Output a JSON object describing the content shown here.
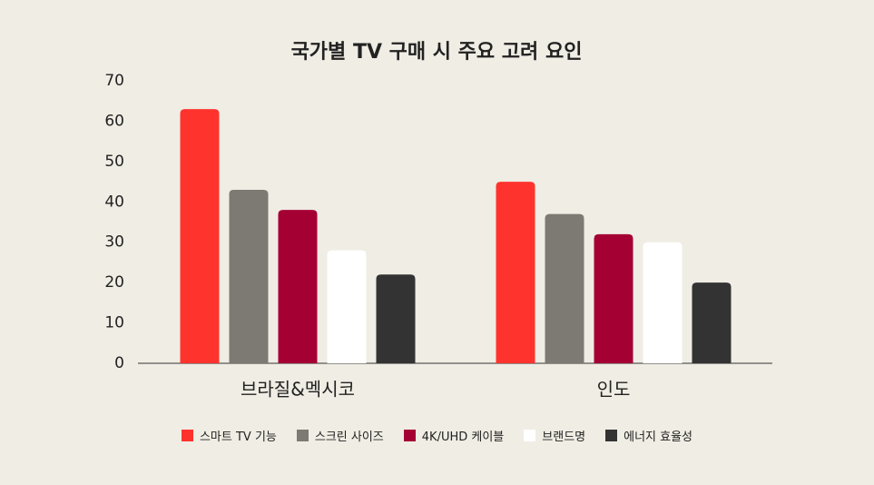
{
  "chart_data": {
    "type": "bar",
    "title": "국가별 TV 구매 시 주요 고려 요인",
    "categories": [
      "브라질&멕시코",
      "인도"
    ],
    "series": [
      {
        "name": "스마트 TV 기능",
        "color": "#ff332e",
        "values": [
          63,
          45
        ]
      },
      {
        "name": "스크린 사이즈",
        "color": "#7d7a74",
        "values": [
          43,
          37
        ]
      },
      {
        "name": "4K/UHD 케이블",
        "color": "#a50034",
        "values": [
          38,
          32
        ]
      },
      {
        "name": "브랜드명",
        "color": "#ffffff",
        "values": [
          28,
          30
        ]
      },
      {
        "name": "에너지 효율성",
        "color": "#333333",
        "values": [
          22,
          20
        ]
      }
    ],
    "ylim": [
      0,
      70
    ],
    "yticks": [
      0,
      10,
      20,
      30,
      40,
      50,
      60,
      70
    ],
    "grid": false,
    "legend": "bottom"
  }
}
